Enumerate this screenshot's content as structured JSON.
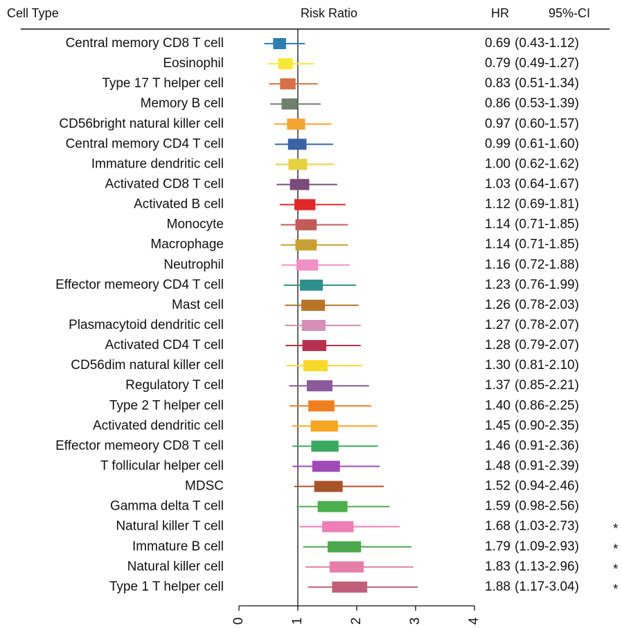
{
  "chart_data": {
    "type": "forest",
    "headers": {
      "label": "Cell Type",
      "plot": "Risk Ratio",
      "hr": "HR",
      "ci": "95%-CI"
    },
    "categories": [
      "Central memory CD8 T cell",
      "Eosinophil",
      "Type 17 T helper cell",
      "Memory B cell",
      "CD56bright natural killer cell",
      "Central memory CD4 T cell",
      "Immature dendritic cell",
      "Activated CD8 T cell",
      "Activated B cell",
      "Monocyte",
      "Macrophage",
      "Neutrophil",
      "Effector memeory CD4 T cell",
      "Mast cell",
      "Plasmacytoid dendritic cell",
      "Activated CD4 T cell",
      "CD56dim natural killer cell",
      "Regulatory T cell",
      "Type 2 T helper cell",
      "Activated dendritic cell",
      "Effector memeory CD8 T cell",
      "T follicular helper cell",
      "MDSC",
      "Gamma delta T cell",
      "Natural killer T cell",
      "Immature  B cell",
      "Natural killer cell",
      "Type 1 T helper cell"
    ],
    "values": [
      0.69,
      0.79,
      0.83,
      0.86,
      0.97,
      0.99,
      1.0,
      1.03,
      1.12,
      1.14,
      1.14,
      1.16,
      1.23,
      1.26,
      1.27,
      1.28,
      1.3,
      1.37,
      1.4,
      1.45,
      1.46,
      1.48,
      1.52,
      1.59,
      1.68,
      1.79,
      1.83,
      1.88
    ],
    "value_labels": [
      "0.69",
      "0.79",
      "0.83",
      "0.86",
      "0.97",
      "0.99",
      "1.00",
      "1.03",
      "1.12",
      "1.14",
      "1.14",
      "1.16",
      "1.23",
      "1.26",
      "1.27",
      "1.28",
      "1.30",
      "1.37",
      "1.40",
      "1.45",
      "1.46",
      "1.48",
      "1.52",
      "1.59",
      "1.68",
      "1.79",
      "1.83",
      "1.88"
    ],
    "lower": [
      0.43,
      0.49,
      0.51,
      0.53,
      0.6,
      0.61,
      0.62,
      0.64,
      0.69,
      0.71,
      0.71,
      0.72,
      0.76,
      0.78,
      0.78,
      0.79,
      0.81,
      0.85,
      0.86,
      0.9,
      0.91,
      0.91,
      0.94,
      0.98,
      1.03,
      1.09,
      1.13,
      1.17
    ],
    "upper": [
      1.12,
      1.27,
      1.34,
      1.39,
      1.57,
      1.6,
      1.62,
      1.67,
      1.81,
      1.85,
      1.85,
      1.88,
      1.99,
      2.03,
      2.07,
      2.07,
      2.1,
      2.21,
      2.25,
      2.35,
      2.36,
      2.39,
      2.46,
      2.56,
      2.73,
      2.93,
      2.96,
      3.04
    ],
    "ci_labels": [
      "(0.43-1.12)",
      "(0.49-1.27)",
      "(0.51-1.34)",
      "(0.53-1.39)",
      "(0.60-1.57)",
      "(0.61-1.60)",
      "(0.62-1.62)",
      "(0.64-1.67)",
      "(0.69-1.81)",
      "(0.71-1.85)",
      "(0.71-1.85)",
      "(0.72-1.88)",
      "(0.76-1.99)",
      "(0.78-2.03)",
      "(0.78-2.07)",
      "(0.79-2.07)",
      "(0.81-2.10)",
      "(0.85-2.21)",
      "(0.86-2.25)",
      "(0.90-2.35)",
      "(0.91-2.36)",
      "(0.91-2.39)",
      "(0.94-2.46)",
      "(0.98-2.56)",
      "(1.03-2.73)",
      "(1.09-2.93)",
      "(1.13-2.96)",
      "(1.17-3.04)"
    ],
    "significance": [
      null,
      null,
      null,
      null,
      null,
      null,
      null,
      null,
      null,
      null,
      null,
      null,
      null,
      null,
      null,
      null,
      null,
      null,
      null,
      null,
      null,
      null,
      null,
      null,
      "*",
      "*",
      "*",
      "*"
    ],
    "colors": [
      "#2e7fb0",
      "#f5e83a",
      "#d9704a",
      "#6f8070",
      "#f2a531",
      "#3a63a5",
      "#e6d140",
      "#7a4a7a",
      "#e0282a",
      "#c35a5a",
      "#c9a035",
      "#f08fc8",
      "#2f8f8a",
      "#b8752a",
      "#d68fb8",
      "#b8324f",
      "#f7d92a",
      "#8a5a9a",
      "#f07f22",
      "#f6a623",
      "#3aa860",
      "#a04ab8",
      "#a8542a",
      "#4cae4c",
      "#ee7fb8",
      "#4ca84c",
      "#e67fa8",
      "#c25f78"
    ],
    "reference": 1,
    "xlim": [
      0,
      4
    ],
    "xticks": [
      0,
      1,
      2,
      3,
      4
    ]
  }
}
